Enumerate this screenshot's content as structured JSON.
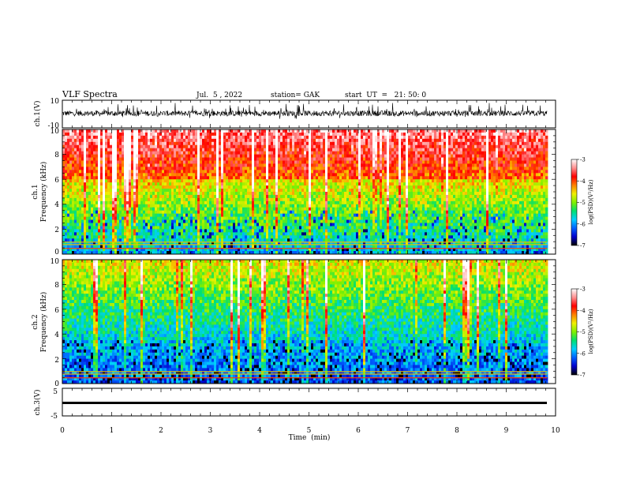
{
  "header": {
    "title": "VLF Spectra",
    "date": "Jul.  5 , 2022",
    "station": "station= GAK",
    "start": "start  UT  =   21: 50: 0"
  },
  "chart_data": {
    "type": "heatmap",
    "title": "VLF Spectra",
    "xlabel": "Time  (min)",
    "xlim": [
      0,
      10
    ],
    "xticks": [
      "0",
      "1",
      "2",
      "3",
      "4",
      "5",
      "6",
      "7",
      "8",
      "9",
      "10"
    ],
    "data_extent_min": 9.83,
    "panels": [
      {
        "name": "ch1_waveform",
        "type": "line",
        "ylabel": "ch.1(V)",
        "ylim": [
          -10,
          10
        ],
        "yticks": [
          "10",
          "-10"
        ],
        "baseline": 0.5,
        "amplitude_range": [
          -4,
          8
        ]
      },
      {
        "name": "ch1_spectrogram",
        "type": "heatmap",
        "ylabel_top": "ch.1",
        "ylabel": "Frequency  (kHz)",
        "ylim": [
          0,
          10
        ],
        "yticks": [
          "0",
          "2",
          "4",
          "6",
          "8",
          "10"
        ]
      },
      {
        "name": "ch2_spectrogram",
        "type": "heatmap",
        "ylabel_top": "ch.2",
        "ylabel": "Frequency  (kHz)",
        "ylim": [
          0,
          10
        ],
        "yticks": [
          "0",
          "2",
          "4",
          "6",
          "8",
          "10"
        ]
      },
      {
        "name": "ch3_waveform",
        "type": "line",
        "ylabel": "ch.3(V)",
        "ylim": [
          -5,
          5
        ],
        "yticks": [
          "5",
          "-5"
        ],
        "value": 0
      }
    ],
    "colorbar": {
      "label": "log(PSD)(V²/Hz)",
      "range": [
        -7,
        -3
      ],
      "ticks": [
        "-3",
        "-4",
        "-5",
        "-6",
        "-7"
      ],
      "colormap": [
        "#000000",
        "#0000cc",
        "#0060ff",
        "#00d0ff",
        "#00e070",
        "#80f000",
        "#f0f000",
        "#ff8000",
        "#ff0000",
        "#ff9090",
        "#ffffff"
      ]
    }
  }
}
